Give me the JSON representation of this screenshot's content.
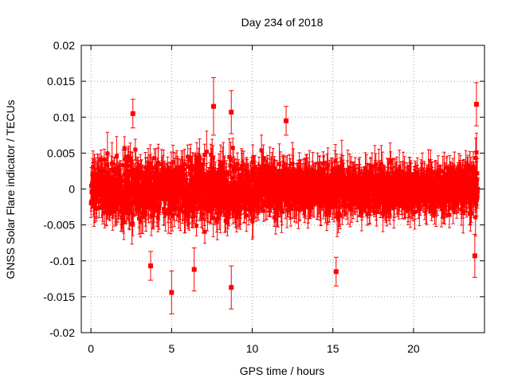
{
  "chart_data": {
    "type": "scatter",
    "title": "Day 234 of 2018",
    "xlabel": "GPS time / hours",
    "ylabel": "GNSS Solar Flare indicator / TECUs",
    "xlim": [
      -0.6,
      24.4
    ],
    "ylim": [
      -0.02,
      0.02
    ],
    "xticks": [
      0,
      5,
      10,
      15,
      20
    ],
    "xtick_labels": [
      "0",
      "5",
      "10",
      "15",
      "20"
    ],
    "yticks": [
      -0.02,
      -0.015,
      -0.01,
      -0.005,
      0,
      0.005,
      0.01,
      0.015,
      0.02
    ],
    "ytick_labels": [
      "-0.02",
      "-0.015",
      "-0.01",
      "-0.005",
      "0",
      "0.005",
      "0.01",
      "0.015",
      "0.02"
    ],
    "grid": true,
    "series": [
      {
        "name": "GNSS Solar Flare indicator",
        "color": "#ff0000",
        "marker": "square",
        "error_bars": true,
        "sampling_interval_hours": 0.00833,
        "x_range": [
          0,
          24
        ],
        "notable_points": [
          {
            "x": 5.0,
            "y": -0.0144,
            "err": 0.003
          },
          {
            "x": 8.7,
            "y": -0.0137,
            "err": 0.003
          },
          {
            "x": 15.2,
            "y": -0.0115,
            "err": 0.002
          },
          {
            "x": 7.6,
            "y": 0.0115,
            "err": 0.004
          },
          {
            "x": 8.7,
            "y": 0.0107,
            "err": 0.003
          },
          {
            "x": 2.6,
            "y": 0.0105,
            "err": 0.002
          },
          {
            "x": 12.1,
            "y": 0.0095,
            "err": 0.002
          },
          {
            "x": 23.9,
            "y": 0.0118,
            "err": 0.003
          },
          {
            "x": 23.8,
            "y": -0.0093,
            "err": 0.003
          },
          {
            "x": 3.7,
            "y": -0.0107,
            "err": 0.002
          },
          {
            "x": 6.4,
            "y": -0.0112,
            "err": 0.003
          }
        ],
        "envelope": [
          {
            "x": 0,
            "amp": 0.006
          },
          {
            "x": 2,
            "amp": 0.007
          },
          {
            "x": 5,
            "amp": 0.0072
          },
          {
            "x": 7,
            "amp": 0.0078
          },
          {
            "x": 9,
            "amp": 0.007
          },
          {
            "x": 11,
            "amp": 0.0062
          },
          {
            "x": 13,
            "amp": 0.0052
          },
          {
            "x": 15,
            "amp": 0.0063
          },
          {
            "x": 17,
            "amp": 0.0052
          },
          {
            "x": 19,
            "amp": 0.005
          },
          {
            "x": 21,
            "amp": 0.0046
          },
          {
            "x": 23,
            "amp": 0.0052
          },
          {
            "x": 24,
            "amp": 0.007
          }
        ]
      }
    ]
  }
}
